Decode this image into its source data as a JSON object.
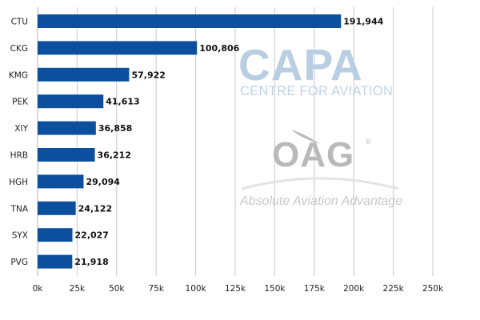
{
  "chart_data": {
    "type": "bar",
    "orientation": "horizontal",
    "categories": [
      "CTU",
      "CKG",
      "KMG",
      "PEK",
      "XIY",
      "HRB",
      "HGH",
      "TNA",
      "SYX",
      "PVG"
    ],
    "values": [
      191944,
      100806,
      57922,
      41613,
      36858,
      36212,
      29094,
      24122,
      22027,
      21918
    ],
    "value_labels": [
      "191,944",
      "100,806",
      "57,922",
      "41,613",
      "36,858",
      "36,212",
      "29,094",
      "24,122",
      "22,027",
      "21,918"
    ],
    "xlim": [
      0,
      250000
    ],
    "x_ticks": [
      0,
      25000,
      50000,
      75000,
      100000,
      125000,
      150000,
      175000,
      200000,
      225000,
      250000
    ],
    "x_tick_labels": [
      "0k",
      "25k",
      "50k",
      "75k",
      "100k",
      "125k",
      "150k",
      "175k",
      "200k",
      "225k",
      "250k"
    ],
    "grid": "vertical",
    "bar_color": "#0b4f9e",
    "grid_color": "#c8c8c8",
    "title": "",
    "xlabel": "",
    "ylabel": ""
  },
  "watermarks": {
    "capa_logo": "CAPA",
    "capa_subtitle": "CENTRE FOR AVIATION",
    "oag_logo": "OAG",
    "oag_registered": "®",
    "oag_tagline": "Absolute Aviation Advantage"
  }
}
